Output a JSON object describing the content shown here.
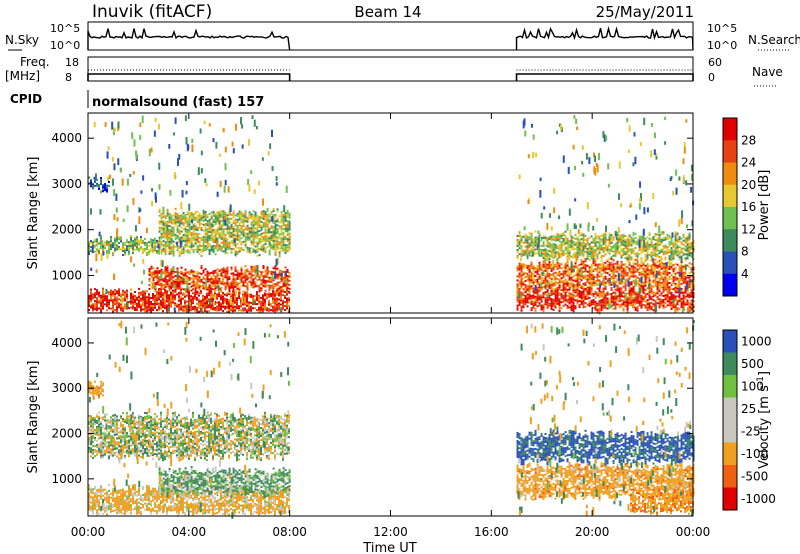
{
  "header": {
    "station": "Inuvik (fitACF)",
    "beam": "Beam 14",
    "date": "25/May/2011"
  },
  "nsky_panel": {
    "left_label": "N.Sky",
    "left_ticks": [
      "10^5",
      "10^0"
    ],
    "right_label": "N.Search",
    "right_ticks": [
      "10^5",
      "10^0"
    ]
  },
  "freq_panel": {
    "left_label_1": "Freq.",
    "left_label_2": "[MHz]",
    "left_ticks": [
      "18",
      "8"
    ],
    "right_label": "Nave",
    "right_ticks": [
      "60",
      "0"
    ]
  },
  "cpid_panel": {
    "label": "CPID",
    "mode_text": "normalsound (fast) 157"
  },
  "colors": {
    "power_scale": [
      "#0000ee",
      "#2a50b8",
      "#3d8a5a",
      "#6ec050",
      "#e6c830",
      "#f08a10",
      "#e84010",
      "#e00000"
    ],
    "velocity_scale": [
      "#e00000",
      "#f06010",
      "#f0a020",
      "#c8c8c0",
      "#c8c8c0",
      "#70c040",
      "#3d8a5a",
      "#2a50b8"
    ]
  },
  "chart_data": [
    {
      "type": "heatmap",
      "title": "",
      "parameter": "Power",
      "xlabel": "Time UT",
      "ylabel": "Slant Range [km]",
      "colorbar_label": "Power [dB]",
      "colorbar_ticks": [
        "28",
        "24",
        "20",
        "16",
        "12",
        "8",
        "4"
      ],
      "colorbar_range": [
        0,
        32
      ],
      "xlim_hours": [
        0,
        24
      ],
      "x_tick_labels": [
        "00:00",
        "04:00",
        "08:00",
        "12:00",
        "16:00",
        "20:00",
        "00:00"
      ],
      "ylim_km": [
        180,
        4550
      ],
      "y_tick_labels": [
        "1000",
        "2000",
        "3000",
        "4000"
      ],
      "y_ticks_km": [
        1000,
        2000,
        3000,
        4000
      ],
      "data_gaps_hours": [
        [
          8.0,
          17.0
        ]
      ],
      "bands": [
        {
          "t_start_h": 0.0,
          "t_end_h": 8.0,
          "range_km": [
            200,
            650
          ],
          "level_db": 28
        },
        {
          "t_start_h": 2.4,
          "t_end_h": 8.0,
          "range_km": [
            700,
            1150
          ],
          "level_db": 26
        },
        {
          "t_start_h": 0.0,
          "t_end_h": 2.8,
          "range_km": [
            1500,
            1800
          ],
          "level_db": 14
        },
        {
          "t_start_h": 2.8,
          "t_end_h": 8.0,
          "range_km": [
            1500,
            2400
          ],
          "level_db": 16
        },
        {
          "t_start_h": 0.0,
          "t_end_h": 0.8,
          "range_km": [
            2900,
            3100
          ],
          "level_db": 6
        },
        {
          "t_start_h": 17.0,
          "t_end_h": 24.0,
          "range_km": [
            700,
            1300
          ],
          "level_db": 24
        },
        {
          "t_start_h": 17.0,
          "t_end_h": 24.0,
          "range_km": [
            300,
            700
          ],
          "level_db": 28
        },
        {
          "t_start_h": 17.0,
          "t_end_h": 24.0,
          "range_km": [
            1400,
            1900
          ],
          "level_db": 16
        }
      ]
    },
    {
      "type": "heatmap",
      "title": "",
      "parameter": "Velocity",
      "xlabel": "Time UT",
      "ylabel": "Slant Range [km]",
      "colorbar_label": "Velocity [m s^-1]",
      "colorbar_ticks": [
        "1000",
        "500",
        "100",
        "25",
        "-25",
        "-100",
        "-500",
        "-1000"
      ],
      "xlim_hours": [
        0,
        24
      ],
      "x_tick_labels": [
        "00:00",
        "04:00",
        "08:00",
        "12:00",
        "16:00",
        "20:00",
        "00:00"
      ],
      "ylim_km": [
        180,
        4550
      ],
      "y_tick_labels": [
        "1000",
        "2000",
        "3000",
        "4000"
      ],
      "y_ticks_km": [
        1000,
        2000,
        3000,
        4000
      ],
      "data_gaps_hours": [
        [
          8.0,
          17.0
        ]
      ],
      "bands": [
        {
          "t_start_h": 0.0,
          "t_end_h": 8.0,
          "range_km": [
            250,
            800
          ],
          "level_mps": -200
        },
        {
          "t_start_h": 2.8,
          "t_end_h": 8.0,
          "range_km": [
            700,
            1200
          ],
          "level_mps": 150
        },
        {
          "t_start_h": 0.0,
          "t_end_h": 8.0,
          "range_km": [
            1500,
            2400
          ],
          "level_mps": 0
        },
        {
          "t_start_h": 0.0,
          "t_end_h": 0.6,
          "range_km": [
            2800,
            3100
          ],
          "level_mps": -300
        },
        {
          "t_start_h": 17.0,
          "t_end_h": 24.0,
          "range_km": [
            600,
            1300
          ],
          "level_mps": -300
        },
        {
          "t_start_h": 17.0,
          "t_end_h": 24.0,
          "range_km": [
            1400,
            2000
          ],
          "level_mps": 600
        },
        {
          "t_start_h": 21.5,
          "t_end_h": 24.0,
          "range_km": [
            300,
            700
          ],
          "level_mps": -400
        }
      ]
    }
  ]
}
